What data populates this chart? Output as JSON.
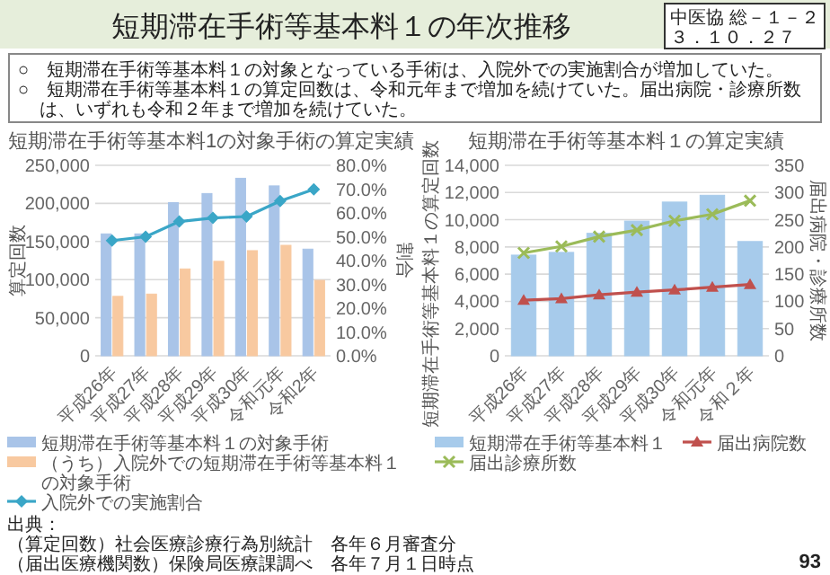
{
  "chart_data": [
    {
      "type": "other",
      "title": "短期滞在手術等基本料１の年次推移",
      "annotations": [
        "中医協 総－１－２",
        "３．１０．２７",
        "○　短期滞在手術等基本料１の対象となっている手術は、入院外での実施割合が増加していた。",
        "○　短期滞在手術等基本料１の算定回数は、令和元年まで増加を続けていた。届出病院・診療所数は、いずれも令和２年まで増加を続けていた。",
        "出典：",
        "（算定回数）社会医療診療行為別統計　各年６月審査分",
        "（届出医療機関数）保険局医療課調べ　各年７月１日時点",
        "93"
      ]
    },
    {
      "type": "bar",
      "title": "短期滞在手術等基本料1の対象手術の算定実績",
      "ylabel": "算定回数",
      "y2label": "割合",
      "categories": [
        "平成26年",
        "平成27年",
        "平成28年",
        "平成29年",
        "平成30年",
        "令和元年",
        "令和2年"
      ],
      "series": [
        {
          "name": "短期滞在手術等基本料１の対象手術",
          "color": "#a9c4e8",
          "values": [
            160000,
            160000,
            201000,
            213000,
            233000,
            223000,
            140000
          ]
        },
        {
          "name": "（うち）入院外での短期滞在手術等基本料１の対象手術",
          "color": "#f8c9a0",
          "values": [
            78000,
            81000,
            114000,
            124000,
            138000,
            145000,
            99000
          ]
        },
        {
          "name": "入院外での実施割合",
          "type": "line",
          "axis": "y2",
          "color": "#3aa6c7",
          "values": [
            48.4,
            50.0,
            56.4,
            57.9,
            58.5,
            65.0,
            69.9
          ]
        }
      ],
      "ylim": [
        0,
        250000
      ],
      "yticks": [
        0,
        {
          "value": 50000,
          "label": "50,000"
        },
        {
          "value": 100000,
          "label": "100,000"
        },
        {
          "value": 150000,
          "label": "150,000"
        },
        {
          "value": 200000,
          "label": "200,000"
        },
        {
          "value": 250000,
          "label": "250,000"
        }
      ],
      "y2lim": [
        0,
        80
      ],
      "y2ticks": [
        {
          "value": 0,
          "label": "0.0%"
        },
        {
          "value": 10,
          "label": "10.0%"
        },
        {
          "value": 20,
          "label": "20.0%"
        },
        {
          "value": 30,
          "label": "30.0%"
        },
        {
          "value": 40,
          "label": "40.0%"
        },
        {
          "value": 50,
          "label": "50.0%"
        },
        {
          "value": 60,
          "label": "60.0%"
        },
        {
          "value": 70,
          "label": "70.0%"
        },
        {
          "value": 80,
          "label": "80.0%"
        }
      ],
      "grid": "y",
      "legend": "bottom",
      "marker": "diamond"
    },
    {
      "type": "bar",
      "title": "短期滞在手術等基本料１の算定実績",
      "ylabel": "短期滞在手術等基本料１の算定回数",
      "y2label": "届出病院・診療所数",
      "categories": [
        "平成26年",
        "平成27年",
        "平成28年",
        "平成29年",
        "平成30年",
        "令和元年",
        "令和２年"
      ],
      "series": [
        {
          "name": "短期滞在手術等基本料１",
          "color": "#a7cbeb",
          "values": [
            7400,
            7600,
            9000,
            9900,
            11300,
            11800,
            8400
          ]
        },
        {
          "name": "届出病院数",
          "type": "line",
          "axis": "y2",
          "marker": "triangle",
          "color": "#c0504d",
          "values": [
            102,
            105,
            112,
            117,
            121,
            126,
            131
          ]
        },
        {
          "name": "届出診療所数",
          "type": "line",
          "axis": "y2",
          "marker": "cross",
          "color": "#9bbb59",
          "values": [
            189,
            201,
            219,
            231,
            248,
            260,
            285
          ]
        }
      ],
      "ylim": [
        0,
        14000
      ],
      "yticks": [
        0,
        {
          "value": 2000,
          "label": "2,000"
        },
        {
          "value": 4000,
          "label": "4,000"
        },
        {
          "value": 6000,
          "label": "6,000"
        },
        {
          "value": 8000,
          "label": "8,000"
        },
        {
          "value": 10000,
          "label": "10,000"
        },
        {
          "value": 12000,
          "label": "12,000"
        },
        {
          "value": 14000,
          "label": "14,000"
        }
      ],
      "y2lim": [
        0,
        350
      ],
      "y2ticks": [
        0,
        50,
        100,
        150,
        200,
        250,
        300,
        350
      ],
      "grid": "y",
      "legend": "bottom"
    }
  ]
}
